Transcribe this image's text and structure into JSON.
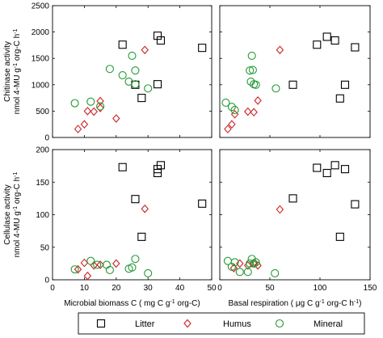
{
  "chart_data": [
    {
      "type": "scatter",
      "panel": "top-left",
      "ylabel_lines": [
        "Chitinase activity",
        "nmol 4-MU g",
        "-1",
        " org-C h",
        "-1"
      ],
      "xlim": [
        0,
        50
      ],
      "ylim": [
        0,
        2500
      ],
      "x_ticks": [
        "0",
        "10",
        "20",
        "30",
        "40",
        "50"
      ],
      "y_ticks": [
        "0",
        "500",
        "1000",
        "1500",
        "2000",
        "2500"
      ],
      "series": [
        {
          "name": "Litter",
          "marker": "square",
          "color": "#000000",
          "points": [
            [
              22,
              1760
            ],
            [
              33,
              1930
            ],
            [
              34,
              1840
            ],
            [
              47,
              1700
            ],
            [
              26,
              1000
            ],
            [
              33,
              1010
            ],
            [
              28,
              750
            ]
          ]
        },
        {
          "name": "Humus",
          "marker": "diamond",
          "color": "#cc2222",
          "points": [
            [
              8,
              160
            ],
            [
              10,
              250
            ],
            [
              11,
              500
            ],
            [
              13,
              490
            ],
            [
              15,
              690
            ],
            [
              15,
              560
            ],
            [
              20,
              360
            ],
            [
              29,
              1660
            ]
          ]
        },
        {
          "name": "Mineral",
          "marker": "circle",
          "color": "#229933",
          "points": [
            [
              7,
              650
            ],
            [
              12,
              680
            ],
            [
              15,
              590
            ],
            [
              18,
              1300
            ],
            [
              22,
              1180
            ],
            [
              24,
              1060
            ],
            [
              25,
              1550
            ],
            [
              26,
              1010
            ],
            [
              26,
              1270
            ],
            [
              30,
              930
            ]
          ]
        }
      ]
    },
    {
      "type": "scatter",
      "panel": "top-right",
      "xlim": [
        0,
        150
      ],
      "ylim": [
        0,
        2500
      ],
      "x_ticks": [
        "0",
        "50",
        "100",
        "150"
      ],
      "series": [
        {
          "name": "Litter",
          "marker": "square",
          "color": "#000000",
          "points": [
            [
              97,
              1760
            ],
            [
              107,
              1910
            ],
            [
              115,
              1840
            ],
            [
              135,
              1710
            ],
            [
              73,
              1000
            ],
            [
              125,
              1000
            ],
            [
              120,
              740
            ]
          ]
        },
        {
          "name": "Humus",
          "marker": "diamond",
          "color": "#cc2222",
          "points": [
            [
              8,
              160
            ],
            [
              12,
              250
            ],
            [
              15,
              440
            ],
            [
              28,
              490
            ],
            [
              34,
              480
            ],
            [
              38,
              700
            ],
            [
              60,
              1660
            ]
          ]
        },
        {
          "name": "Mineral",
          "marker": "circle",
          "color": "#229933",
          "points": [
            [
              6,
              660
            ],
            [
              12,
              580
            ],
            [
              15,
              520
            ],
            [
              30,
              1270
            ],
            [
              31,
              1060
            ],
            [
              32,
              1550
            ],
            [
              33,
              1280
            ],
            [
              34,
              1010
            ],
            [
              36,
              1000
            ],
            [
              56,
              930
            ]
          ]
        }
      ]
    },
    {
      "type": "scatter",
      "panel": "bottom-left",
      "ylabel_lines": [
        "Cellulase activity",
        "nmol 4-MU g",
        "-1",
        " org-C h",
        "-1"
      ],
      "xlabel_parts": [
        "Microbial biomass C ( mg C g",
        "-1",
        " org-C)"
      ],
      "xlim": [
        0,
        50
      ],
      "ylim": [
        0,
        200
      ],
      "x_ticks": [
        "0",
        "10",
        "20",
        "30",
        "40",
        "50"
      ],
      "y_ticks": [
        "0",
        "50",
        "100",
        "150",
        "200"
      ],
      "series": [
        {
          "name": "Litter",
          "marker": "square",
          "color": "#000000",
          "points": [
            [
              22,
              173
            ],
            [
              33,
              164
            ],
            [
              33,
              170
            ],
            [
              34,
              176
            ],
            [
              26,
              124
            ],
            [
              47,
              117
            ],
            [
              28,
              66
            ]
          ]
        },
        {
          "name": "Humus",
          "marker": "diamond",
          "color": "#cc2222",
          "points": [
            [
              8,
              16
            ],
            [
              10,
              26
            ],
            [
              11,
              6
            ],
            [
              13,
              22
            ],
            [
              15,
              23
            ],
            [
              20,
              25
            ],
            [
              29,
              109
            ]
          ]
        },
        {
          "name": "Mineral",
          "marker": "circle",
          "color": "#229933",
          "points": [
            [
              7,
              16
            ],
            [
              12,
              29
            ],
            [
              14,
              23
            ],
            [
              17,
              23
            ],
            [
              18,
              15
            ],
            [
              24,
              17
            ],
            [
              25,
              19
            ],
            [
              26,
              32
            ],
            [
              30,
              10
            ]
          ]
        }
      ]
    },
    {
      "type": "scatter",
      "panel": "bottom-right",
      "xlabel_parts": [
        "Basal respiration ( μg C g",
        "-1",
        " org-C h",
        "-1",
        ")"
      ],
      "xlim": [
        0,
        150
      ],
      "ylim": [
        0,
        200
      ],
      "x_ticks": [
        "0",
        "50",
        "100",
        "150"
      ],
      "series": [
        {
          "name": "Litter",
          "marker": "square",
          "color": "#000000",
          "points": [
            [
              97,
              172
            ],
            [
              107,
              164
            ],
            [
              115,
              176
            ],
            [
              125,
              170
            ],
            [
              73,
              125
            ],
            [
              135,
              116
            ],
            [
              120,
              66
            ]
          ]
        },
        {
          "name": "Humus",
          "marker": "diamond",
          "color": "#cc2222",
          "points": [
            [
              14,
              18
            ],
            [
              20,
              25
            ],
            [
              28,
              22
            ],
            [
              34,
              25
            ],
            [
              38,
              22
            ],
            [
              60,
              108
            ]
          ]
        },
        {
          "name": "Mineral",
          "marker": "circle",
          "color": "#229933",
          "points": [
            [
              8,
              29
            ],
            [
              12,
              20
            ],
            [
              15,
              27
            ],
            [
              20,
              12
            ],
            [
              28,
              12
            ],
            [
              30,
              25
            ],
            [
              32,
              32
            ],
            [
              34,
              25
            ],
            [
              36,
              27
            ],
            [
              55,
              10
            ]
          ]
        }
      ]
    }
  ],
  "legend": {
    "placement": "bottom",
    "items": [
      {
        "label": "Litter",
        "marker": "square",
        "color": "#000000"
      },
      {
        "label": "Humus",
        "marker": "diamond",
        "color": "#cc2222"
      },
      {
        "label": "Mineral",
        "marker": "circle",
        "color": "#229933"
      }
    ]
  }
}
